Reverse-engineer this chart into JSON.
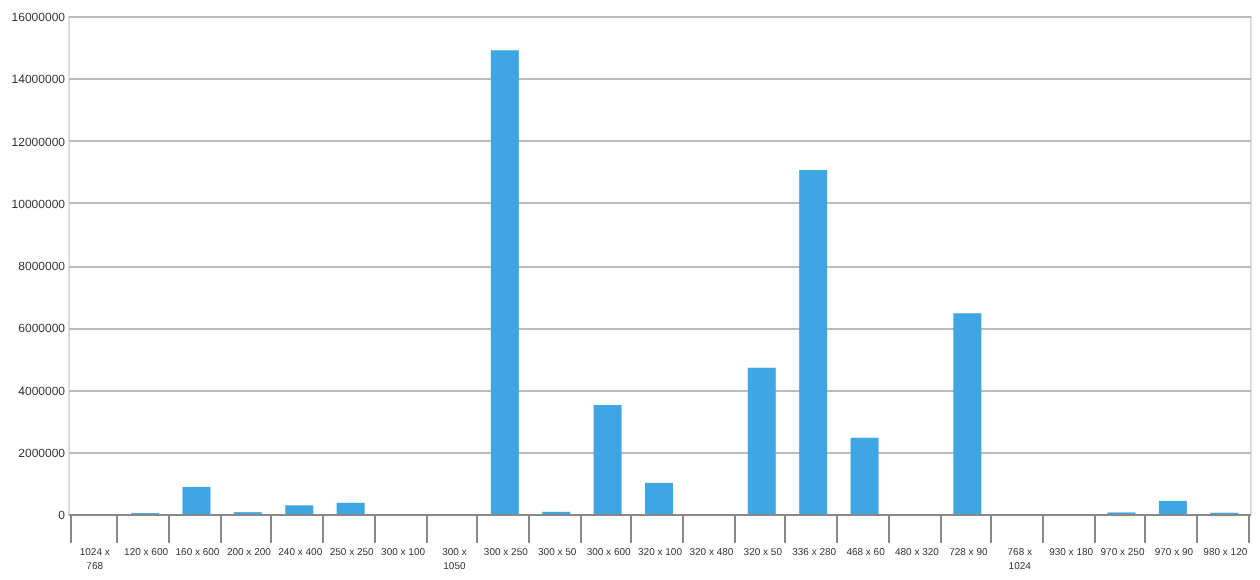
{
  "chart_data": {
    "type": "bar",
    "categories": [
      "1024 x 768",
      "120 x 600",
      "160 x 600",
      "200 x 200",
      "240 x 400",
      "250 x 250",
      "300 x 100",
      "300 x 1050",
      "300 x 250",
      "300 x 50",
      "300 x 600",
      "320 x 100",
      "320 x 480",
      "320 x 50",
      "336 x 280",
      "468 x 60",
      "480 x 320",
      "728 x 90",
      "768 x 1024",
      "930 x 180",
      "970 x 250",
      "970 x 90",
      "980 x 120"
    ],
    "values": [
      0,
      30000,
      870000,
      60000,
      280000,
      360000,
      0,
      null,
      14900000,
      70000,
      3500000,
      1000000,
      0,
      4700000,
      11050000,
      2450000,
      null,
      6450000,
      0,
      0,
      50000,
      420000,
      40000
    ],
    "color": "#3fa6e4",
    "ylim": [
      0,
      16000000
    ],
    "yticks": [
      0,
      2000000,
      4000000,
      6000000,
      8000000,
      10000000,
      12000000,
      14000000,
      16000000
    ],
    "grid": "y"
  }
}
